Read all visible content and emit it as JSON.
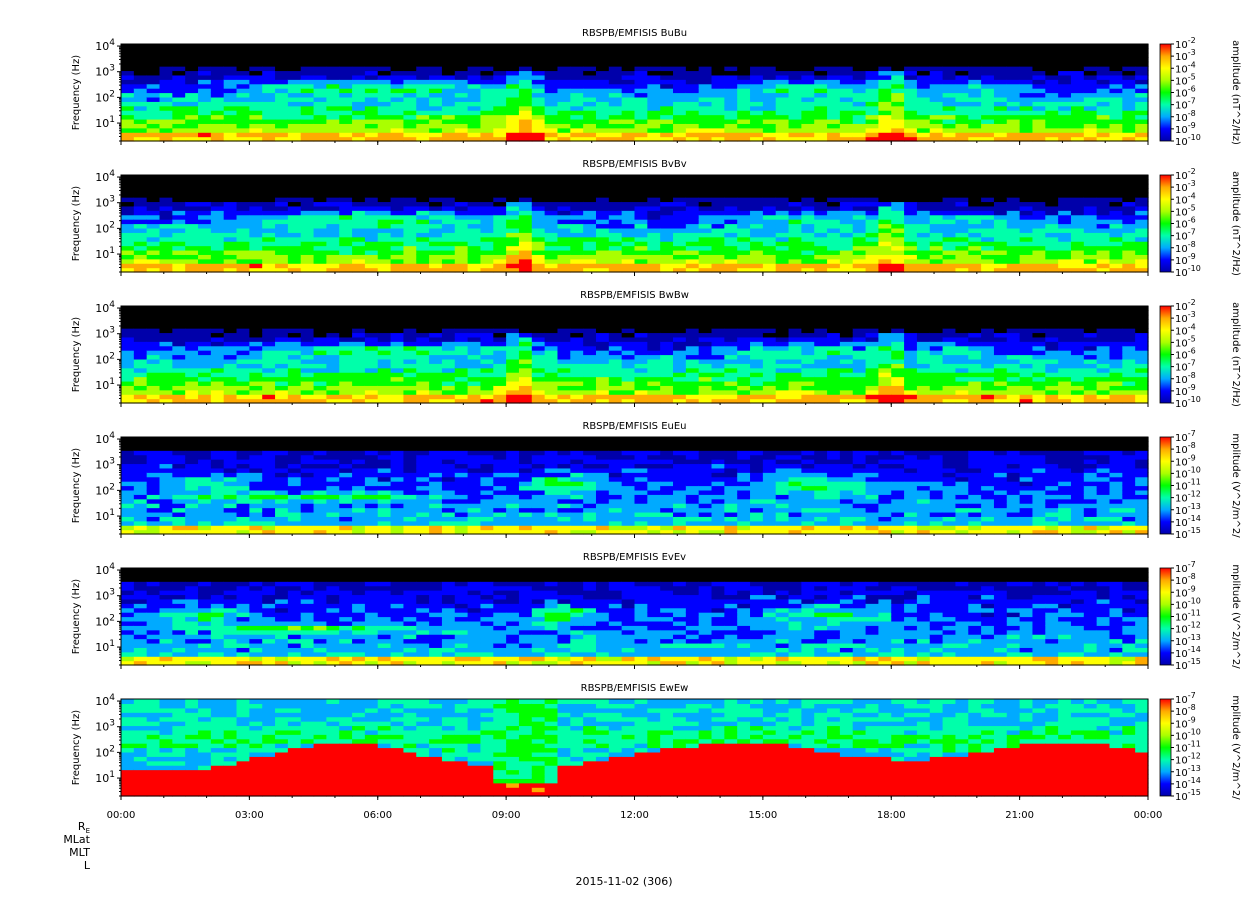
{
  "chart_data": [
    {
      "type": "heatmap",
      "title": "RBSPB/EMFISIS  BuBu",
      "ylabel": "Frequency (Hz)",
      "yscale": "log",
      "ylim": [
        2,
        12000
      ],
      "yticks": [
        10,
        100,
        1000,
        10000
      ],
      "ytick_labels": [
        "10^1",
        "10^2",
        "10^3",
        "10^4"
      ],
      "xlim": [
        "2015-11-02 00:00",
        "2015-11-03 00:00"
      ],
      "colorbar": {
        "label": "amplitude (nT^2/Hz)",
        "scale": "log",
        "exp_min": -10,
        "exp_max": -2,
        "exps": [
          -2,
          -3,
          -4,
          -5,
          -6,
          -7,
          -8,
          -9,
          -10
        ]
      }
    },
    {
      "type": "heatmap",
      "title": "RBSPB/EMFISIS  BvBv",
      "ylabel": "Frequency (Hz)",
      "yscale": "log",
      "ylim": [
        2,
        12000
      ],
      "yticks": [
        10,
        100,
        1000,
        10000
      ],
      "ytick_labels": [
        "10^1",
        "10^2",
        "10^3",
        "10^4"
      ],
      "xlim": [
        "2015-11-02 00:00",
        "2015-11-03 00:00"
      ],
      "colorbar": {
        "label": "amplitude (nT^2/Hz)",
        "scale": "log",
        "exp_min": -10,
        "exp_max": -2,
        "exps": [
          -2,
          -3,
          -4,
          -5,
          -6,
          -7,
          -8,
          -9,
          -10
        ]
      }
    },
    {
      "type": "heatmap",
      "title": "RBSPB/EMFISIS  BwBw",
      "ylabel": "Frequency (Hz)",
      "yscale": "log",
      "ylim": [
        2,
        12000
      ],
      "yticks": [
        10,
        100,
        1000,
        10000
      ],
      "ytick_labels": [
        "10^1",
        "10^2",
        "10^3",
        "10^4"
      ],
      "xlim": [
        "2015-11-02 00:00",
        "2015-11-03 00:00"
      ],
      "colorbar": {
        "label": "amplitude (nT^2/Hz)",
        "scale": "log",
        "exp_min": -10,
        "exp_max": -2,
        "exps": [
          -2,
          -3,
          -4,
          -5,
          -6,
          -7,
          -8,
          -9,
          -10
        ]
      }
    },
    {
      "type": "heatmap",
      "title": "RBSPB/EMFISIS  EuEu",
      "ylabel": "Frequency (Hz)",
      "yscale": "log",
      "ylim": [
        2,
        12000
      ],
      "yticks": [
        10,
        100,
        1000,
        10000
      ],
      "ytick_labels": [
        "10^1",
        "10^2",
        "10^3",
        "10^4"
      ],
      "xlim": [
        "2015-11-02 00:00",
        "2015-11-03 00:00"
      ],
      "colorbar": {
        "label": "mplitude (V^2/m^2/",
        "scale": "log",
        "exp_min": -15,
        "exp_max": -7,
        "exps": [
          -7,
          -8,
          -9,
          -10,
          -11,
          -12,
          -13,
          -14,
          -15
        ]
      }
    },
    {
      "type": "heatmap",
      "title": "RBSPB/EMFISIS  EvEv",
      "ylabel": "Frequency (Hz)",
      "yscale": "log",
      "ylim": [
        2,
        12000
      ],
      "yticks": [
        10,
        100,
        1000,
        10000
      ],
      "ytick_labels": [
        "10^1",
        "10^2",
        "10^3",
        "10^4"
      ],
      "xlim": [
        "2015-11-02 00:00",
        "2015-11-03 00:00"
      ],
      "colorbar": {
        "label": "mplitude (V^2/m^2/",
        "scale": "log",
        "exp_min": -15,
        "exp_max": -7,
        "exps": [
          -7,
          -8,
          -9,
          -10,
          -11,
          -12,
          -13,
          -14,
          -15
        ]
      }
    },
    {
      "type": "heatmap",
      "title": "RBSPB/EMFISIS  EwEw",
      "ylabel": "Frequency (Hz)",
      "yscale": "log",
      "ylim": [
        2,
        12000
      ],
      "yticks": [
        10,
        100,
        1000,
        10000
      ],
      "ytick_labels": [
        "10^1",
        "10^2",
        "10^3",
        "10^4"
      ],
      "xlim": [
        "2015-11-02 00:00",
        "2015-11-03 00:00"
      ],
      "colorbar": {
        "label": "mplitude (V^2/m^2/",
        "scale": "log",
        "exp_min": -15,
        "exp_max": -7,
        "exps": [
          -7,
          -8,
          -9,
          -10,
          -11,
          -12,
          -13,
          -14,
          -15
        ]
      }
    }
  ],
  "x_axis": {
    "tick_labels": [
      "00:00",
      "03:00",
      "06:00",
      "09:00",
      "12:00",
      "15:00",
      "18:00",
      "21:00",
      "00:00"
    ],
    "ephemeris_labels": [
      "R",
      "MLat",
      "MLT",
      "L"
    ],
    "r_subscript": "E",
    "date_label": "2015-11-02 (306)"
  },
  "colors": {
    "background": "#ffffff",
    "fill_spec": "#000000",
    "colormap": [
      "#0000aa",
      "#0000ff",
      "#00aaff",
      "#00ffaa",
      "#00ff00",
      "#aaff00",
      "#ffff00",
      "#ffaa00",
      "#ff0000"
    ]
  }
}
